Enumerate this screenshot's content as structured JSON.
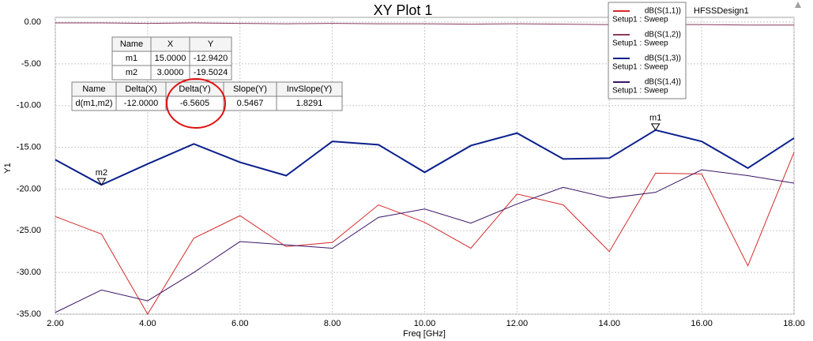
{
  "chart_data": {
    "type": "line",
    "title": "XY Plot 1",
    "design": "HFSSDesign1",
    "xlabel": "Freq [GHz]",
    "ylabel": "Y1",
    "x": [
      2,
      3,
      4,
      5,
      6,
      7,
      8,
      9,
      10,
      11,
      12,
      13,
      14,
      15,
      16,
      17,
      18
    ],
    "xlim": [
      2,
      18
    ],
    "ylim": [
      -35,
      0
    ],
    "xticks": [
      {
        "value": 2,
        "label": "2.00"
      },
      {
        "value": 4,
        "label": "4.00"
      },
      {
        "value": 6,
        "label": "6.00"
      },
      {
        "value": 8,
        "label": "8.00"
      },
      {
        "value": 10,
        "label": "10.00"
      },
      {
        "value": 12,
        "label": "12.00"
      },
      {
        "value": 14,
        "label": "14.00"
      },
      {
        "value": 16,
        "label": "16.00"
      },
      {
        "value": 18,
        "label": "18.00"
      }
    ],
    "yticks": [
      {
        "value": 0,
        "label": "0.00"
      },
      {
        "value": -5,
        "label": "-5.00"
      },
      {
        "value": -10,
        "label": "-10.00"
      },
      {
        "value": -15,
        "label": "-15.00"
      },
      {
        "value": -20,
        "label": "-20.00"
      },
      {
        "value": -25,
        "label": "-25.00"
      },
      {
        "value": -30,
        "label": "-30.00"
      },
      {
        "value": -35,
        "label": "-35.00"
      }
    ],
    "grid": true,
    "series": [
      {
        "name": "dB(S(1,1))",
        "setup": "Setup1 : Sweep",
        "color": "#d42a2a",
        "width": 1,
        "values": [
          -23.3,
          -25.4,
          -35.0,
          -25.9,
          -23.2,
          -26.9,
          -26.4,
          -21.9,
          -24.0,
          -27.1,
          -20.6,
          -21.9,
          -27.5,
          -18.1,
          -18.2,
          -29.2,
          -15.6
        ]
      },
      {
        "name": "dB(S(1,2))",
        "setup": "Setup1 : Sweep",
        "color": "#8a3a5e",
        "width": 1,
        "values": [
          -0.1,
          -0.1,
          -0.15,
          -0.1,
          -0.15,
          -0.2,
          -0.15,
          -0.2,
          -0.2,
          -0.25,
          -0.2,
          -0.25,
          -0.3,
          -0.3,
          -0.3,
          -0.35,
          -0.35
        ]
      },
      {
        "name": "dB(S(1,3))",
        "setup": "Setup1 : Sweep",
        "color": "#0a1f8c",
        "width": 2,
        "values": [
          -16.5,
          -19.5024,
          -17.0,
          -14.6,
          -16.8,
          -18.4,
          -14.3,
          -14.7,
          -18.0,
          -14.8,
          -13.3,
          -16.4,
          -16.3,
          -12.942,
          -14.3,
          -17.5,
          -13.9
        ]
      },
      {
        "name": "dB(S(1,4))",
        "setup": "Setup1 : Sweep",
        "color": "#3c1466",
        "width": 1,
        "values": [
          -34.8,
          -32.1,
          -33.4,
          -30.0,
          -26.3,
          -26.7,
          -27.1,
          -23.4,
          -22.4,
          -24.1,
          -21.8,
          -19.8,
          -21.1,
          -20.4,
          -17.7,
          -18.4,
          -19.3
        ]
      }
    ],
    "markers": [
      {
        "name": "m1",
        "x": 15,
        "y": -12.942
      },
      {
        "name": "m2",
        "x": 3,
        "y": -19.5024
      }
    ],
    "marker_table": {
      "columns": [
        "Name",
        "X",
        "Y"
      ],
      "rows": [
        [
          "m1",
          "15.0000",
          "-12.9420"
        ],
        [
          "m2",
          "3.0000",
          "-19.5024"
        ]
      ]
    },
    "delta_table": {
      "columns": [
        "Name",
        "Delta(X)",
        "Delta(Y)",
        "Slope(Y)",
        "InvSlope(Y)"
      ],
      "rows": [
        [
          "d(m1,m2)",
          "-12.0000",
          "-6.5605",
          "0.5467",
          "1.8291"
        ]
      ]
    }
  }
}
